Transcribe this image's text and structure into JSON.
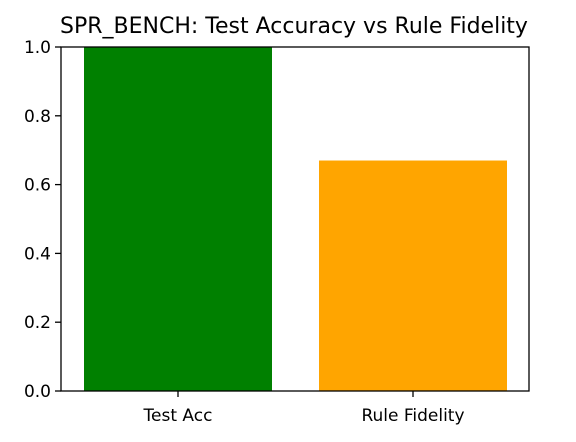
{
  "chart_data": {
    "type": "bar",
    "title": "SPR_BENCH: Test Accuracy vs Rule Fidelity",
    "categories": [
      "Test Acc",
      "Rule Fidelity"
    ],
    "values": [
      1.0,
      0.67
    ],
    "bar_colors": [
      "#008000",
      "#ffa500"
    ],
    "xlabel": "",
    "ylabel": "",
    "ylim": [
      0.0,
      1.0
    ],
    "yticks": [
      0.0,
      0.2,
      0.4,
      0.6,
      0.8,
      1.0
    ],
    "ytick_labels": [
      "0.0",
      "0.2",
      "0.4",
      "0.6",
      "0.8",
      "1.0"
    ],
    "grid": false,
    "legend": "none"
  }
}
